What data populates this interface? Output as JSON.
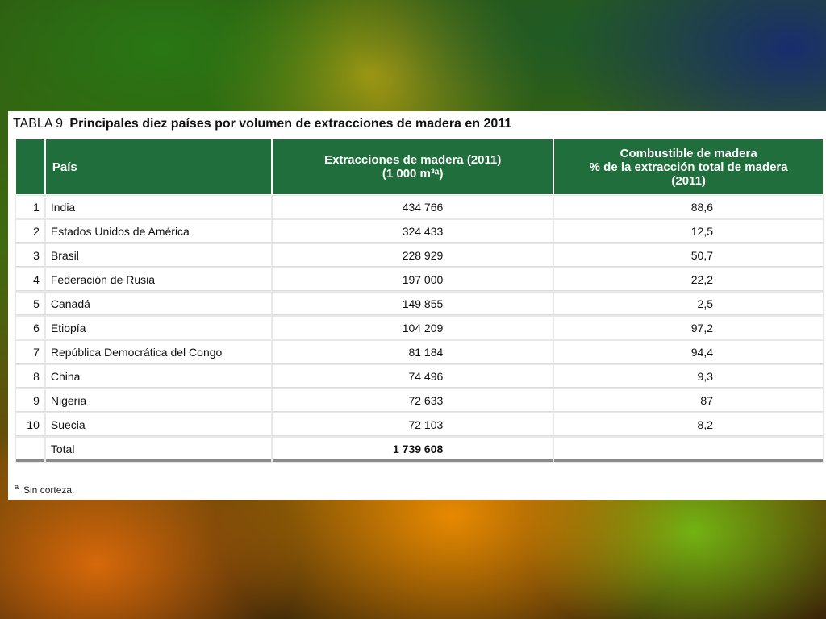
{
  "table": {
    "tag": "TABLA 9",
    "title": "Principales diez países por volumen de extracciones de madera en 2011",
    "headers": {
      "number": "",
      "country": "País",
      "extraction_line1": "Extracciones de madera (2011)",
      "extraction_line2": "(1 000 m³ᵃ)",
      "fuel_line1": "Combustible de madera",
      "fuel_line2": "% de la extracción total de madera",
      "fuel_line3": "(2011)"
    },
    "rows": [
      {
        "rank": "1",
        "country": "India",
        "extraction": "434 766",
        "fuel": "88,6"
      },
      {
        "rank": "2",
        "country": "Estados Unidos de América",
        "extraction": "324 433",
        "fuel": "12,5"
      },
      {
        "rank": "3",
        "country": "Brasil",
        "extraction": "228 929",
        "fuel": "50,7"
      },
      {
        "rank": "4",
        "country": "Federación de Rusia",
        "extraction": "197 000",
        "fuel": "22,2"
      },
      {
        "rank": "5",
        "country": "Canadá",
        "extraction": "149 855",
        "fuel": "2,5"
      },
      {
        "rank": "6",
        "country": "Etiopía",
        "extraction": "104 209",
        "fuel": "97,2"
      },
      {
        "rank": "7",
        "country": "República Democrática del Congo",
        "extraction": "81 184",
        "fuel": "94,4"
      },
      {
        "rank": "8",
        "country": "China",
        "extraction": "74 496",
        "fuel": "9,3"
      },
      {
        "rank": "9",
        "country": "Nigeria",
        "extraction": "72 633",
        "fuel": "87"
      },
      {
        "rank": "10",
        "country": "Suecia",
        "extraction": "72 103",
        "fuel": "8,2"
      }
    ],
    "total": {
      "label": "Total",
      "extraction": "1 739 608",
      "fuel": ""
    },
    "footnote_mark": "a",
    "footnote": "Sin corteza."
  },
  "colors": {
    "header_green": "#1f6e3b"
  }
}
